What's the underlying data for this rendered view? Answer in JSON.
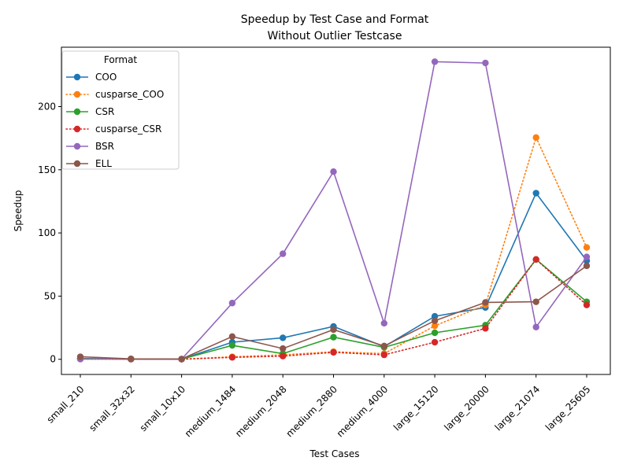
{
  "chart_data": {
    "type": "line",
    "title": "Speedup by Test Case and Format",
    "subtitle": "Without Outlier Testcase",
    "xlabel": "Test Cases",
    "ylabel": "Speedup",
    "ylim": [
      -12,
      247
    ],
    "yticks": [
      0,
      50,
      100,
      150,
      200
    ],
    "grid": false,
    "legend_title": "Format",
    "legend_position": "top-left",
    "categories": [
      "small_210",
      "small_32x32",
      "small_10x10",
      "medium_1484",
      "medium_2048",
      "medium_2880",
      "medium_4000",
      "large_15120",
      "large_20000",
      "large_21074",
      "large_25605"
    ],
    "series": [
      {
        "name": "COO",
        "color": "#1f77b4",
        "style": "solid",
        "values": [
          0.5,
          0.2,
          0.1,
          13.5,
          17.0,
          26.0,
          10.0,
          34.0,
          41.0,
          131.5,
          78.0
        ]
      },
      {
        "name": "cusparse_COO",
        "color": "#ff7f0e",
        "style": "dotted",
        "values": [
          0.3,
          0.1,
          0.1,
          2.0,
          3.5,
          6.0,
          4.5,
          26.5,
          43.0,
          175.5,
          88.5
        ]
      },
      {
        "name": "CSR",
        "color": "#2ca02c",
        "style": "solid",
        "values": [
          0.5,
          0.2,
          0.1,
          11.0,
          4.5,
          17.5,
          9.5,
          21.0,
          27.0,
          79.0,
          45.5
        ]
      },
      {
        "name": "cusparse_CSR",
        "color": "#d62728",
        "style": "dotted",
        "values": [
          0.2,
          0.1,
          0.1,
          1.5,
          2.5,
          5.5,
          3.5,
          13.5,
          24.5,
          79.0,
          43.0
        ]
      },
      {
        "name": "BSR",
        "color": "#9467bd",
        "style": "solid",
        "values": [
          0.2,
          0.1,
          0.1,
          44.5,
          83.5,
          148.5,
          28.5,
          235.5,
          234.5,
          25.5,
          81.0
        ]
      },
      {
        "name": "ELL",
        "color": "#8c564b",
        "style": "solid",
        "values": [
          2.0,
          0.3,
          0.2,
          18.0,
          8.5,
          23.5,
          10.5,
          30.5,
          45.0,
          45.5,
          74.0
        ]
      }
    ]
  }
}
